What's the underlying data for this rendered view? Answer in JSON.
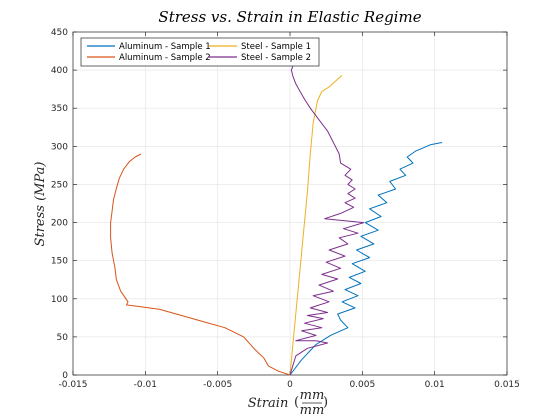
{
  "chart_data": {
    "type": "line",
    "title": "Stress vs. Strain in Elastic Regime",
    "xlabel": "Strain",
    "xlabel_unit_numerator": "mm",
    "xlabel_unit_denominator": "mm",
    "ylabel": "Stress (MPa)",
    "xlim": [
      -0.015,
      0.015
    ],
    "ylim": [
      0,
      450
    ],
    "xticks": [
      -0.015,
      -0.01,
      -0.005,
      0,
      0.005,
      0.01,
      0.015
    ],
    "xtick_labels": [
      "-0.015",
      "-0.01",
      "-0.005",
      "0",
      "0.005",
      "0.01",
      "0.015"
    ],
    "yticks": [
      0,
      50,
      100,
      150,
      200,
      250,
      300,
      350,
      400,
      450
    ],
    "ytick_labels": [
      "0",
      "50",
      "100",
      "150",
      "200",
      "250",
      "300",
      "350",
      "400",
      "450"
    ],
    "grid": true,
    "legend_position": "top-left",
    "series": [
      {
        "name": "Aluminum - Sample 1",
        "color": "#0072BD",
        "points": [
          [
            0,
            0
          ],
          [
            0.0008,
            20
          ],
          [
            0.0018,
            40
          ],
          [
            0.0028,
            52
          ],
          [
            0.004,
            62
          ],
          [
            0.0035,
            72
          ],
          [
            0.0033,
            80
          ],
          [
            0.0045,
            88
          ],
          [
            0.0036,
            96
          ],
          [
            0.0047,
            104
          ],
          [
            0.0038,
            112
          ],
          [
            0.0049,
            120
          ],
          [
            0.0041,
            128
          ],
          [
            0.0052,
            136
          ],
          [
            0.0043,
            146
          ],
          [
            0.0055,
            154
          ],
          [
            0.0046,
            164
          ],
          [
            0.0058,
            172
          ],
          [
            0.0049,
            182
          ],
          [
            0.0061,
            190
          ],
          [
            0.0052,
            200
          ],
          [
            0.0063,
            208
          ],
          [
            0.0055,
            218
          ],
          [
            0.0067,
            226
          ],
          [
            0.0061,
            236
          ],
          [
            0.0073,
            244
          ],
          [
            0.0069,
            254
          ],
          [
            0.008,
            262
          ],
          [
            0.0076,
            270
          ],
          [
            0.0085,
            278
          ],
          [
            0.0081,
            286
          ],
          [
            0.0087,
            294
          ],
          [
            0.0092,
            298
          ],
          [
            0.0097,
            302
          ],
          [
            0.0105,
            305
          ]
        ]
      },
      {
        "name": "Aluminum - Sample 2",
        "color": "#D95319",
        "points": [
          [
            0,
            0
          ],
          [
            -0.0008,
            5
          ],
          [
            -0.0015,
            12
          ],
          [
            -0.0018,
            22
          ],
          [
            -0.0025,
            35
          ],
          [
            -0.0032,
            50
          ],
          [
            -0.0045,
            62
          ],
          [
            -0.006,
            70
          ],
          [
            -0.0075,
            78
          ],
          [
            -0.009,
            86
          ],
          [
            -0.0105,
            90
          ],
          [
            -0.0113,
            92
          ],
          [
            -0.0112,
            96
          ],
          [
            -0.0117,
            110
          ],
          [
            -0.012,
            125
          ],
          [
            -0.0121,
            140
          ],
          [
            -0.0123,
            160
          ],
          [
            -0.0124,
            180
          ],
          [
            -0.0124,
            200
          ],
          [
            -0.0123,
            215
          ],
          [
            -0.0122,
            230
          ],
          [
            -0.012,
            245
          ],
          [
            -0.0118,
            258
          ],
          [
            -0.0115,
            270
          ],
          [
            -0.0111,
            280
          ],
          [
            -0.0107,
            286
          ],
          [
            -0.0103,
            290
          ]
        ]
      },
      {
        "name": "Steel - Sample 1",
        "color": "#EDB120",
        "points": [
          [
            0,
            0
          ],
          [
            0.0003,
            60
          ],
          [
            0.0006,
            120
          ],
          [
            0.0009,
            180
          ],
          [
            0.0012,
            240
          ],
          [
            0.0014,
            290
          ],
          [
            0.0016,
            330
          ],
          [
            0.0019,
            360
          ],
          [
            0.0022,
            372
          ],
          [
            0.0027,
            378
          ],
          [
            0.0033,
            388
          ],
          [
            0.0036,
            393
          ]
        ]
      },
      {
        "name": "Steel - Sample 2",
        "color": "#7E2F8E",
        "points": [
          [
            0,
            0
          ],
          [
            0.0004,
            25
          ],
          [
            0.0012,
            35
          ],
          [
            0.0026,
            42
          ],
          [
            0.0018,
            45
          ],
          [
            0.0004,
            45
          ],
          [
            0.0018,
            52
          ],
          [
            0.0008,
            58
          ],
          [
            0.0022,
            62
          ],
          [
            0.001,
            68
          ],
          [
            0.0023,
            74
          ],
          [
            0.0012,
            78
          ],
          [
            0.0026,
            82
          ],
          [
            0.0014,
            88
          ],
          [
            0.0027,
            96
          ],
          [
            0.0016,
            104
          ],
          [
            0.003,
            110
          ],
          [
            0.002,
            118
          ],
          [
            0.0033,
            126
          ],
          [
            0.0022,
            132
          ],
          [
            0.0035,
            140
          ],
          [
            0.0025,
            148
          ],
          [
            0.0038,
            156
          ],
          [
            0.0027,
            164
          ],
          [
            0.004,
            172
          ],
          [
            0.0034,
            180
          ],
          [
            0.0047,
            186
          ],
          [
            0.0037,
            192
          ],
          [
            0.0051,
            200
          ],
          [
            0.0024,
            205
          ],
          [
            0.0035,
            212
          ],
          [
            0.0044,
            220
          ],
          [
            0.0038,
            226
          ],
          [
            0.0045,
            232
          ],
          [
            0.004,
            238
          ],
          [
            0.0045,
            244
          ],
          [
            0.004,
            250
          ],
          [
            0.0043,
            256
          ],
          [
            0.0038,
            262
          ],
          [
            0.0042,
            270
          ],
          [
            0.0035,
            278
          ],
          [
            0.0034,
            290
          ],
          [
            0.003,
            305
          ],
          [
            0.0026,
            320
          ],
          [
            0.002,
            335
          ],
          [
            0.0014,
            350
          ],
          [
            0.001,
            362
          ],
          [
            0.0007,
            372
          ],
          [
            0.0004,
            382
          ],
          [
            0.0002,
            392
          ],
          [
            0.0001,
            400
          ],
          [
            0.0002,
            405
          ]
        ]
      }
    ]
  }
}
